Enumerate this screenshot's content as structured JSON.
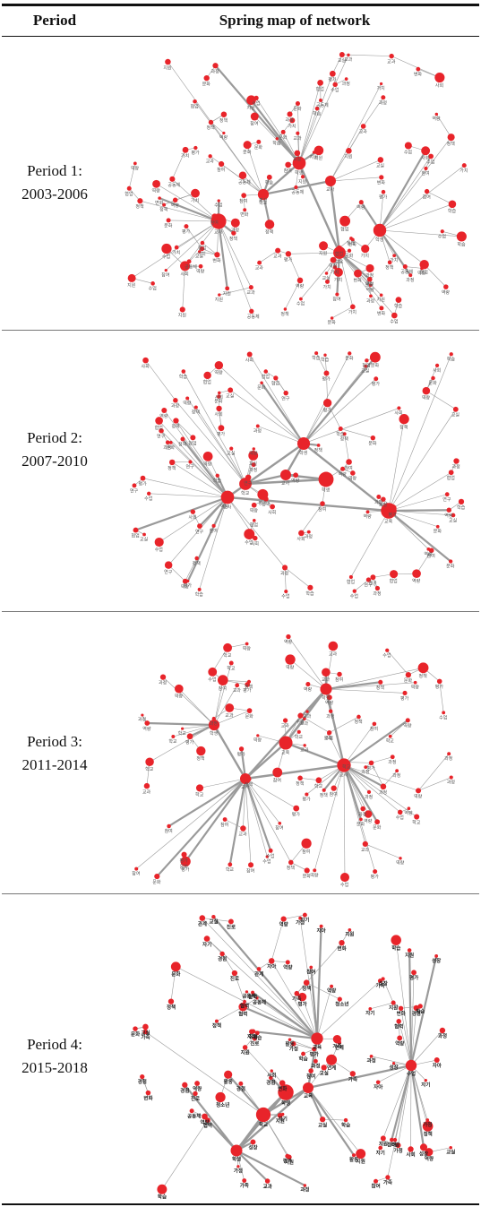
{
  "table": {
    "col_period": "Period",
    "col_map": "Spring map of network"
  },
  "rows": [
    {
      "line1": "Period 1:",
      "line2": "2003-2006"
    },
    {
      "line1": "Period 2:",
      "line2": "2007-2010"
    },
    {
      "line1": "Period 3:",
      "line2": "2011-2014"
    },
    {
      "line1": "Period 4:",
      "line2": "2015-2018"
    }
  ],
  "colors": {
    "node": "#e8242a",
    "edge": "#9a9a9a"
  },
  "maps": [
    {
      "hubs": [
        "교사",
        "학생",
        "교육",
        "학교"
      ],
      "labels": [
        "협업",
        "공동체",
        "역량",
        "가치",
        "교과",
        "수업",
        "교실",
        "정책",
        "평가",
        "지원",
        "참여",
        "문화",
        "학습",
        "사회",
        "변화",
        "과정"
      ]
    },
    {
      "hubs": [
        "교사",
        "학생",
        "교육",
        "학교"
      ],
      "labels": [
        "협업",
        "역량",
        "교실",
        "평가",
        "정책",
        "수업",
        "참여",
        "학습",
        "사회",
        "문화",
        "과정",
        "연구"
      ]
    },
    {
      "hubs": [
        "교사",
        "학생",
        "교육"
      ],
      "labels": [
        "수업",
        "교과",
        "학교",
        "평가",
        "역량",
        "정책",
        "문화",
        "참여",
        "과정"
      ]
    },
    {
      "hubs": [
        "교육",
        "학생",
        "학교",
        "수업"
      ],
      "labels": [
        "청소년",
        "가정",
        "경험",
        "연계",
        "문화",
        "활동",
        "참여",
        "자아",
        "진로",
        "역량",
        "사회",
        "평가",
        "교과",
        "정책",
        "지원",
        "가족",
        "성장",
        "학습",
        "공동체",
        "관계",
        "교실",
        "협력",
        "과정",
        "변화",
        "자기"
      ]
    }
  ]
}
